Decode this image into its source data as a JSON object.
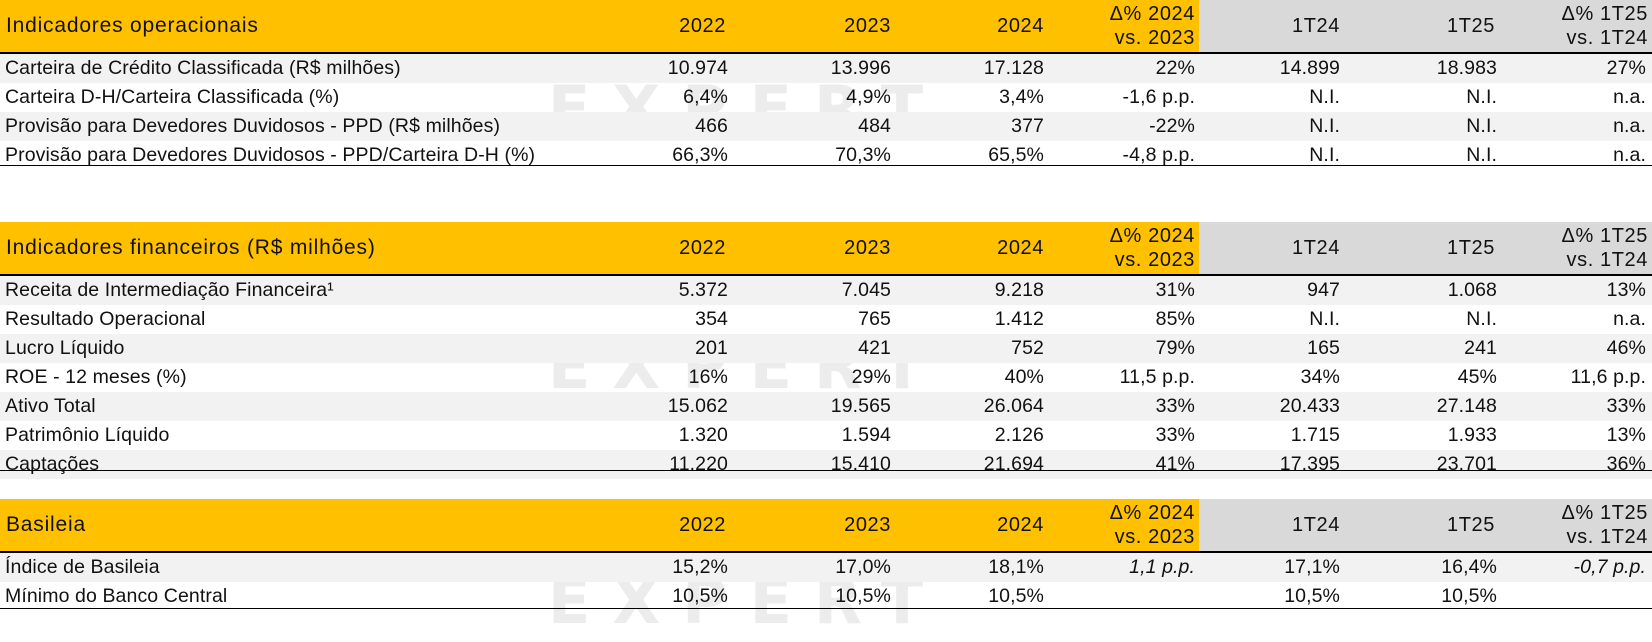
{
  "columns": {
    "y2022": "2022",
    "y2023": "2023",
    "y2024": "2024",
    "delta_year": "Δ% 2024\nvs. 2023",
    "q1_24": "1T24",
    "q1_25": "1T25",
    "delta_quarter": "Δ% 1T25\nvs. 1T24"
  },
  "watermark": "EXPERT",
  "operacionais": {
    "title": "Indicadores operacionais",
    "rows": [
      {
        "label": "Carteira de Crédito Classificada (R$ milhões)",
        "v2022": "10.974",
        "v2023": "13.996",
        "v2024": "17.128",
        "dy": "22%",
        "q24": "14.899",
        "q25": "18.983",
        "dq": "27%"
      },
      {
        "label": "Carteira D-H/Carteira Classificada (%)",
        "v2022": "6,4%",
        "v2023": "4,9%",
        "v2024": "3,4%",
        "dy": "-1,6 p.p.",
        "q24": "N.I.",
        "q25": "N.I.",
        "dq": "n.a."
      },
      {
        "label": "Provisão para Devedores Duvidosos - PPD (R$ milhões)",
        "v2022": "466",
        "v2023": "484",
        "v2024": "377",
        "dy": "-22%",
        "q24": "N.I.",
        "q25": "N.I.",
        "dq": "n.a."
      },
      {
        "label": "Provisão para Devedores Duvidosos - PPD/Carteira D-H (%)",
        "v2022": "66,3%",
        "v2023": "70,3%",
        "v2024": "65,5%",
        "dy": "-4,8 p.p.",
        "q24": "N.I.",
        "q25": "N.I.",
        "dq": "n.a."
      }
    ]
  },
  "financeiros": {
    "title": "Indicadores financeiros (R$ milhões)",
    "rows": [
      {
        "label": "Receita de Intermediação Financeira¹",
        "v2022": "5.372",
        "v2023": "7.045",
        "v2024": "9.218",
        "dy": "31%",
        "q24": "947",
        "q25": "1.068",
        "dq": "13%"
      },
      {
        "label": "Resultado Operacional",
        "v2022": "354",
        "v2023": "765",
        "v2024": "1.412",
        "dy": "85%",
        "q24": "N.I.",
        "q25": "N.I.",
        "dq": "n.a."
      },
      {
        "label": "Lucro Líquido",
        "v2022": "201",
        "v2023": "421",
        "v2024": "752",
        "dy": "79%",
        "q24": "165",
        "q25": "241",
        "dq": "46%"
      },
      {
        "label": "ROE - 12 meses (%)",
        "v2022": "16%",
        "v2023": "29%",
        "v2024": "40%",
        "dy": "11,5 p.p.",
        "q24": "34%",
        "q25": "45%",
        "dq": "11,6 p.p."
      },
      {
        "label": "Ativo Total",
        "v2022": "15.062",
        "v2023": "19.565",
        "v2024": "26.064",
        "dy": "33%",
        "q24": "20.433",
        "q25": "27.148",
        "dq": "33%"
      },
      {
        "label": "Patrimônio Líquido",
        "v2022": "1.320",
        "v2023": "1.594",
        "v2024": "2.126",
        "dy": "33%",
        "q24": "1.715",
        "q25": "1.933",
        "dq": "13%"
      },
      {
        "label": "Captações",
        "v2022": "11.220",
        "v2023": "15.410",
        "v2024": "21.694",
        "dy": "41%",
        "q24": "17.395",
        "q25": "23.701",
        "dq": "36%"
      }
    ]
  },
  "basileia": {
    "title": "Basileia",
    "rows": [
      {
        "label": "Índice de Basileia",
        "v2022": "15,2%",
        "v2023": "17,0%",
        "v2024": "18,1%",
        "dy": "1,1 p.p.",
        "q24": "17,1%",
        "q25": "16,4%",
        "dq": "-0,7 p.p."
      },
      {
        "label": "Mínimo do Banco Central",
        "v2022": "10,5%",
        "v2023": "10,5%",
        "v2024": "10,5%",
        "dy": "",
        "q24": "10,5%",
        "q25": "10,5%",
        "dq": ""
      }
    ]
  }
}
